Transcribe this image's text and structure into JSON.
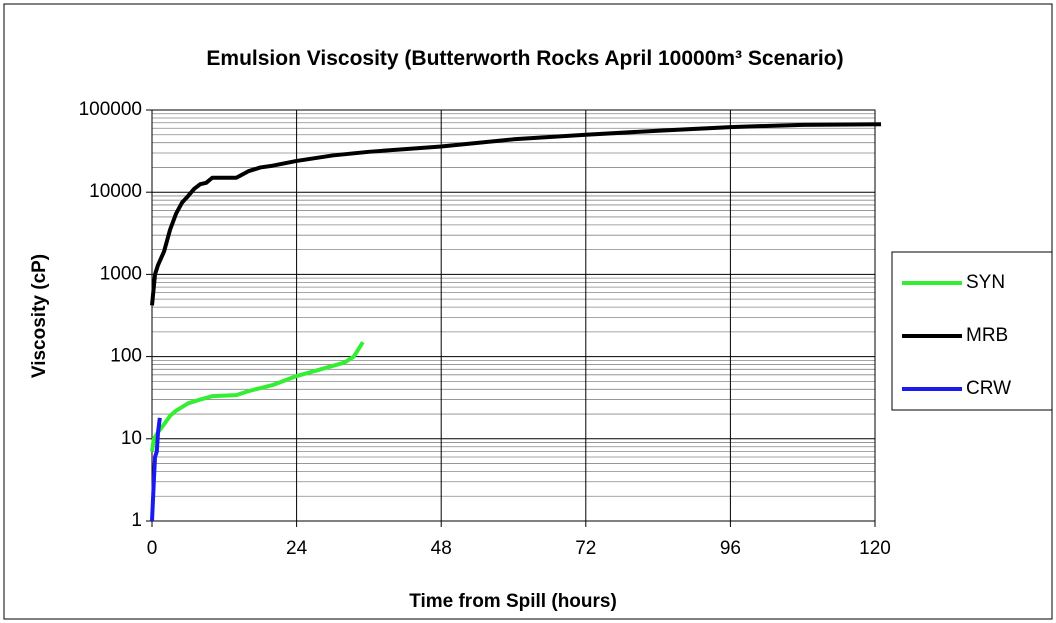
{
  "chart_data": {
    "type": "line",
    "title": "Emulsion Viscosity (Butterworth Rocks April 10000m³ Scenario)",
    "x_label": "Time from Spill (hours)",
    "y_label": "Viscosity (cP)",
    "xlim": [
      0,
      120
    ],
    "xticks": [
      0,
      24,
      48,
      72,
      96,
      120
    ],
    "ylim": [
      1,
      100000
    ],
    "yticks": [
      100000,
      10000,
      1000,
      100,
      10,
      1
    ],
    "y_log": true,
    "grid": true,
    "minor_grid": true,
    "legend": "right",
    "series": [
      {
        "name": "SYN",
        "color": "#33ee33",
        "x": [
          0,
          0.3,
          1,
          2,
          3,
          4,
          6,
          8,
          10,
          14,
          16,
          20,
          24,
          28,
          32,
          33.5,
          35
        ],
        "values": [
          7,
          10,
          12,
          15,
          19,
          22,
          27,
          30,
          33,
          34,
          38,
          45,
          58,
          70,
          85,
          100,
          150
        ]
      },
      {
        "name": "MRB",
        "color": "#000000",
        "x": [
          0,
          0.5,
          1,
          2,
          3,
          4,
          5,
          6,
          7,
          8,
          9,
          10,
          14,
          16,
          18,
          20,
          24,
          30,
          36,
          48,
          60,
          72,
          84,
          96,
          108,
          121
        ],
        "values": [
          420,
          1000,
          1300,
          1900,
          3500,
          5500,
          7500,
          9000,
          11000,
          12500,
          13000,
          15000,
          15000,
          18000,
          20000,
          21000,
          24000,
          28000,
          31000,
          36000,
          44000,
          50000,
          56000,
          62000,
          66000,
          67000
        ]
      },
      {
        "name": "CRW",
        "color": "#1a1aee",
        "x": [
          0,
          0.3,
          0.5,
          0.8,
          1,
          1.3
        ],
        "values": [
          1,
          3,
          6,
          7,
          12,
          18
        ]
      }
    ]
  }
}
